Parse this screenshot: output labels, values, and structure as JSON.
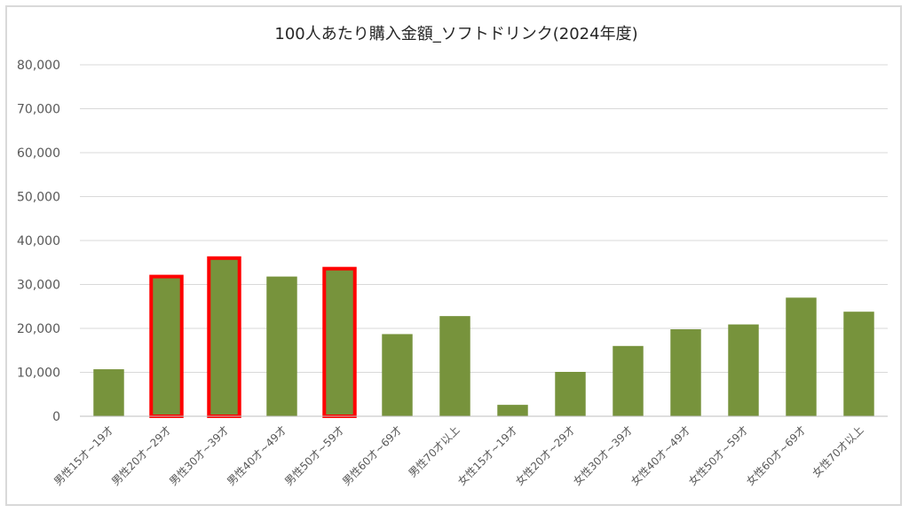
{
  "chart_data": {
    "type": "bar",
    "title": "100人あたり購入金額_ソフトドリンク(2024年度)",
    "xlabel": "",
    "ylabel": "",
    "ylim": [
      0,
      80000
    ],
    "yticks": [
      0,
      10000,
      20000,
      30000,
      40000,
      50000,
      60000,
      70000,
      80000
    ],
    "ytick_labels": [
      "0",
      "10,000",
      "20,000",
      "30,000",
      "40,000",
      "50,000",
      "60,000",
      "70,000",
      "80,000"
    ],
    "grid": true,
    "legend": "none",
    "bar_color": "#77933c",
    "highlight_color": "#ff0000",
    "categories": [
      "男性15才~19才",
      "男性20才~29才",
      "男性30才~39才",
      "男性40才~49才",
      "男性50才~59才",
      "男性60才~69才",
      "男性70才以上",
      "女性15才~19才",
      "女性20才~29才",
      "女性30才~39才",
      "女性40才~49才",
      "女性50才~59才",
      "女性60才~69才",
      "女性70才以上"
    ],
    "values": [
      10700,
      31800,
      36000,
      31800,
      33600,
      18700,
      22800,
      2600,
      10100,
      16000,
      19800,
      20900,
      27000,
      23800
    ],
    "highlighted": [
      false,
      true,
      true,
      false,
      true,
      false,
      false,
      false,
      false,
      false,
      false,
      false,
      false,
      false
    ]
  }
}
